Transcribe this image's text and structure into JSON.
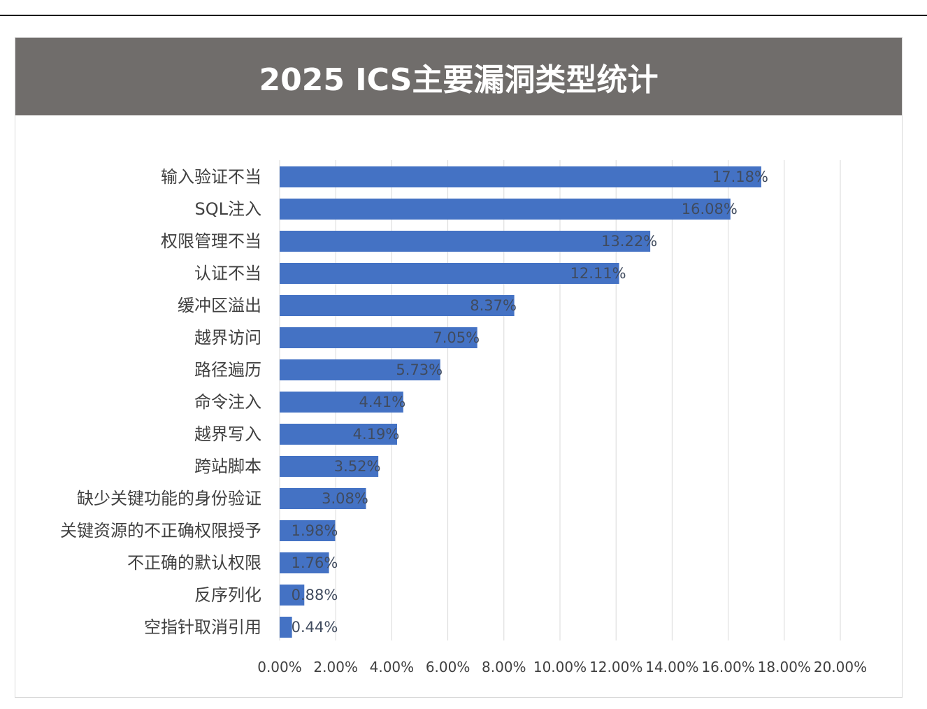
{
  "colors": {
    "title_bg": "#706d6b",
    "bar": "#4472c4",
    "grid": "#d9d9d9",
    "bar_label": "#404b5e",
    "category_label": "#404040",
    "tick_label": "#404040"
  },
  "chart_data": {
    "type": "bar",
    "orientation": "horizontal",
    "title": "2025 ICS主要漏洞类型统计",
    "xlabel": "",
    "ylabel": "",
    "xlim": [
      0,
      20
    ],
    "grid": "vertical",
    "categories": [
      "输入验证不当",
      "SQL注入",
      "权限管理不当",
      "认证不当",
      "缓冲区溢出",
      "越界访问",
      "路径遍历",
      "命令注入",
      "越界写入",
      "跨站脚本",
      "缺少关键功能的身份验证",
      "关键资源的不正确权限授予",
      "不正确的默认权限",
      "反序列化",
      "空指针取消引用"
    ],
    "values": [
      17.18,
      16.08,
      13.22,
      12.11,
      8.37,
      7.05,
      5.73,
      4.41,
      4.19,
      3.52,
      3.08,
      1.98,
      1.76,
      0.88,
      0.44
    ],
    "value_labels": [
      "17.18%",
      "16.08%",
      "13.22%",
      "12.11%",
      "8.37%",
      "7.05%",
      "5.73%",
      "4.41%",
      "4.19%",
      "3.52%",
      "3.08%",
      "1.98%",
      "1.76%",
      "0.88%",
      "0.44%"
    ],
    "tick_labels": [
      "0.00%",
      "2.00%",
      "4.00%",
      "6.00%",
      "8.00%",
      "10.00%",
      "12.00%",
      "14.00%",
      "16.00%",
      "18.00%",
      "20.00%"
    ]
  }
}
